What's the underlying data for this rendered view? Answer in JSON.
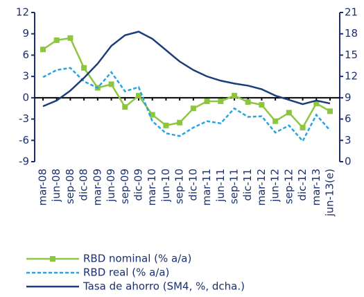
{
  "chart_data": {
    "type": "line",
    "categories": [
      "mar-08",
      "jun-08",
      "sep-08",
      "dic-08",
      "mar-09",
      "jun-09",
      "sep-09",
      "dic-09",
      "mar-10",
      "jun-10",
      "sep-10",
      "dic-10",
      "mar-11",
      "jun-11",
      "sep-11",
      "dic-11",
      "mar-12",
      "jun-12",
      "sep-12",
      "dic-12",
      "mar-13",
      "jun-13(e)"
    ],
    "series": [
      {
        "name": "RBD nominal (% a/a)",
        "color": "#8cc63f",
        "marker": "square",
        "dashed": false,
        "values": [
          6.8,
          8.1,
          8.4,
          4.2,
          1.4,
          1.9,
          -1.3,
          0.3,
          -2.4,
          -3.9,
          -3.5,
          -1.5,
          -0.5,
          -0.5,
          0.3,
          -0.6,
          -1.0,
          -3.3,
          -2.1,
          -4.2,
          -0.8,
          -1.9
        ]
      },
      {
        "name": "RBD real (% a/a)",
        "color": "#29a3dd",
        "dashed": true,
        "values": [
          2.9,
          3.9,
          4.2,
          2.3,
          1.4,
          3.6,
          0.9,
          1.5,
          -3.3,
          -5.0,
          -5.4,
          -4.2,
          -3.3,
          -3.6,
          -1.5,
          -2.7,
          -2.6,
          -4.9,
          -3.9,
          -6.1,
          -2.4,
          -4.6
        ]
      },
      {
        "name": "Tasa de ahorro (SM4, %, dcha.)",
        "color": "#1a3d7c",
        "dashed": false,
        "axis": "y2",
        "values": [
          7.8,
          8.6,
          10.0,
          11.8,
          13.8,
          16.3,
          17.8,
          18.3,
          17.3,
          15.7,
          14.1,
          12.9,
          12.0,
          11.4,
          11.0,
          10.7,
          10.2,
          9.3,
          8.7,
          8.1,
          8.6,
          8.2
        ]
      }
    ],
    "ylim": [
      -9,
      12
    ],
    "yticks": [
      -9,
      -6,
      -3,
      0,
      3,
      6,
      9,
      12
    ],
    "y2lim": [
      0,
      21
    ],
    "y2ticks": [
      0,
      3,
      6,
      9,
      12,
      15,
      18,
      21
    ]
  }
}
